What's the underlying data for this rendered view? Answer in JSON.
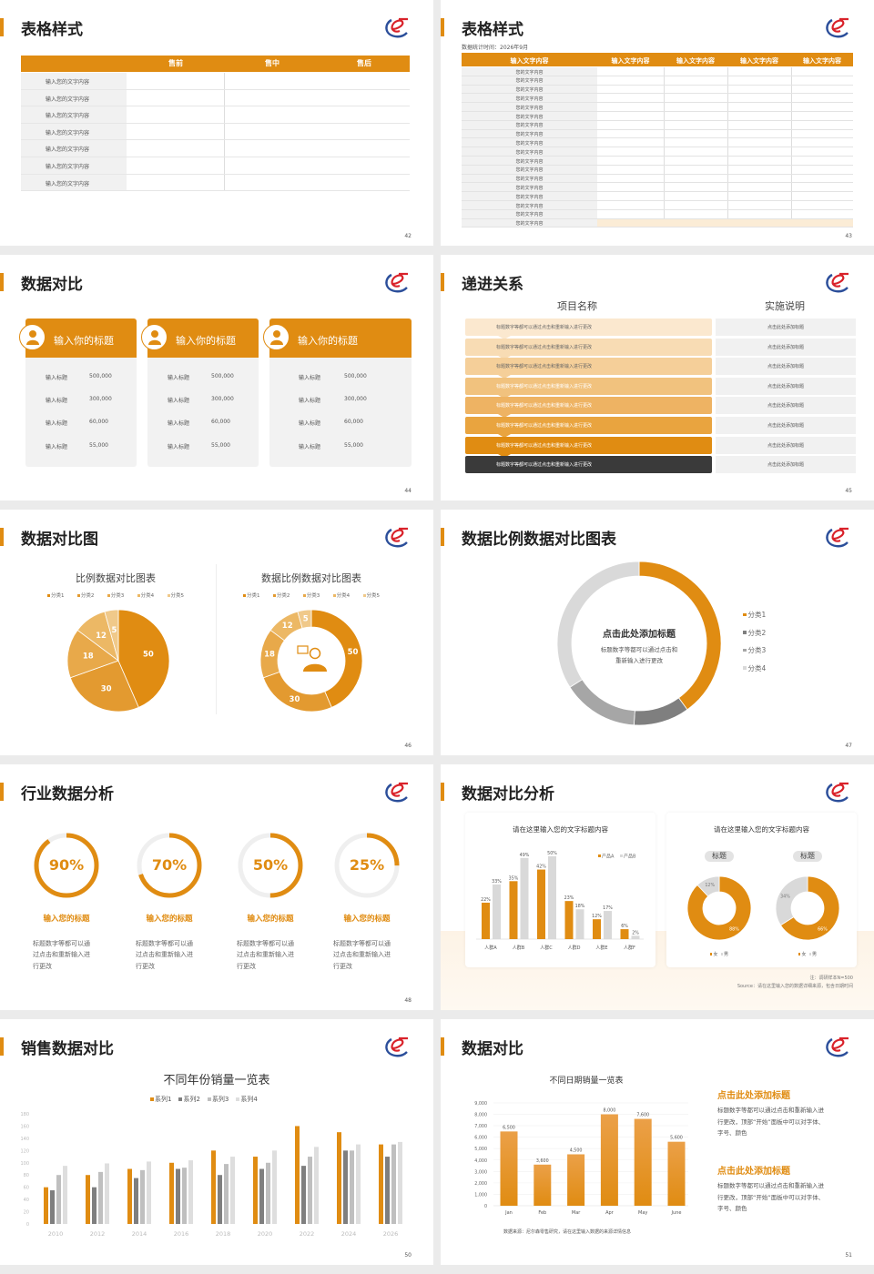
{
  "colors": {
    "accent": "#e08c12",
    "dark": "#3a3a3a",
    "gray": "#888888",
    "lightgray": "#d9d9d9",
    "logo_blue": "#2b4e9a",
    "logo_red": "#d9222a"
  },
  "logo_icon": "brand-e-swirl-logo",
  "s42": {
    "title": "表格样式",
    "page": "42",
    "headers": [
      "售前",
      "售中",
      "售后"
    ],
    "rows": [
      "输入您的文字内容",
      "输入您的文字内容",
      "输入您的文字内容",
      "输入您的文字内容",
      "输入您的文字内容",
      "输入您的文字内容",
      "输入您的文字内容"
    ]
  },
  "s43": {
    "title": "表格样式",
    "subtitle": "数据统计时间：2026年9月",
    "page": "43",
    "headers": [
      "输入文字内容",
      "输入文字内容",
      "输入文字内容",
      "输入文字内容",
      "输入文字内容"
    ],
    "rows": [
      "您的文字内容",
      "您的文字内容",
      "您的文字内容",
      "您的文字内容",
      "您的文字内容",
      "您的文字内容",
      "您的文字内容",
      "您的文字内容",
      "您的文字内容",
      "您的文字内容",
      "您的文字内容",
      "您的文字内容",
      "您的文字内容",
      "您的文字内容",
      "您的文字内容",
      "您的文字内容",
      "您的文字内容",
      "您的文字内容"
    ]
  },
  "s44": {
    "title": "数据对比",
    "page": "44",
    "cards": [
      {
        "title": "输入你的标题",
        "icon": "phone-user-add-icon",
        "items": [
          {
            "label": "输入标题",
            "value": "500,000"
          },
          {
            "label": "输入标题",
            "value": "300,000"
          },
          {
            "label": "输入标题",
            "value": "60,000"
          },
          {
            "label": "输入标题",
            "value": "55,000"
          }
        ]
      },
      {
        "title": "输入你的标题",
        "icon": "user-add-icon",
        "items": [
          {
            "label": "输入标题",
            "value": "500,000"
          },
          {
            "label": "输入标题",
            "value": "300,000"
          },
          {
            "label": "输入标题",
            "value": "60,000"
          },
          {
            "label": "输入标题",
            "value": "55,000"
          }
        ]
      },
      {
        "title": "输入你的标题",
        "icon": "user-group-icon",
        "items": [
          {
            "label": "输入标题",
            "value": "500,000"
          },
          {
            "label": "输入标题",
            "value": "300,000"
          },
          {
            "label": "输入标题",
            "value": "60,000"
          },
          {
            "label": "输入标题",
            "value": "55,000"
          }
        ]
      }
    ]
  },
  "s45": {
    "title": "递进关系",
    "page": "45",
    "col1": "项目名称",
    "col2": "实施说明",
    "rows": [
      {
        "text": "标题数字等都可以通过点击和重新输入进行更改",
        "note": "点击此处添加标题"
      },
      {
        "text": "标题数字等都可以通过点击和重新输入进行更改",
        "note": "点击此处添加标题"
      },
      {
        "text": "标题数字等都可以通过点击和重新输入进行更改",
        "note": "点击此处添加标题"
      },
      {
        "text": "标题数字等都可以通过点击和重新输入进行更改",
        "note": "点击此处添加标题"
      },
      {
        "text": "标题数字等都可以通过点击和重新输入进行更改",
        "note": "点击此处添加标题"
      },
      {
        "text": "标题数字等都可以通过点击和重新输入进行更改",
        "note": "点击此处添加标题"
      },
      {
        "text": "标题数字等都可以通过点击和重新输入进行更改",
        "note": "点击此处添加标题"
      },
      {
        "text": "标题数字等都可以通过点击和重新输入进行更改",
        "note": "点击此处添加标题"
      }
    ],
    "row_colors": [
      "#fbe8cf",
      "#f8dcb4",
      "#f5cf99",
      "#f1c27e",
      "#eeb363",
      "#e9a43f",
      "#e08c12",
      "#3a3a3a"
    ]
  },
  "s46": {
    "title": "数据对比图",
    "page": "46",
    "center_icon": "customer-service-person-icon"
  },
  "s47": {
    "title": "数据比例数据对比图表",
    "page": "47",
    "center_title": "点击此处添加标题",
    "center_text": [
      "标题数字等都可以通过点击和",
      "重新输入进行更改"
    ]
  },
  "s48": {
    "title": "行业数据分析",
    "page": "48",
    "items": [
      {
        "percent": 90,
        "label": "90%",
        "title": "输入您的标题",
        "text": [
          "标题数字等都可以通",
          "过点击和重新输入进",
          "行更改"
        ]
      },
      {
        "percent": 70,
        "label": "70%",
        "title": "输入您的标题",
        "text": [
          "标题数字等都可以通",
          "过点击和重新输入进",
          "行更改"
        ]
      },
      {
        "percent": 50,
        "label": "50%",
        "title": "输入您的标题",
        "text": [
          "标题数字等都可以通",
          "过点击和重新输入进",
          "行更改"
        ]
      },
      {
        "percent": 25,
        "label": "25%",
        "title": "输入您的标题",
        "text": [
          "标题数字等都可以通",
          "过点击和重新输入进",
          "行更改"
        ]
      }
    ]
  },
  "s49": {
    "title": "数据对比分析",
    "page": "49",
    "card1_title": "请在这里输入您的文字标题内容",
    "card2_title": "请在这里输入您的文字标题内容",
    "note": "注：调研样本N=500",
    "source": "Source：请在这里输入您的数据详细来源，包含日期时间"
  },
  "s50": {
    "title": "销售数据对比",
    "page": "50"
  },
  "s51": {
    "title": "数据对比",
    "page": "51",
    "source": "数据来源：尼尔森零售研究，请在这里输入数据的来源详情信息",
    "blocks": [
      {
        "title": "点击此处添加标题",
        "text": [
          "标题数字等都可以通过点击和重新输入进",
          "行更改，顶部“开始”面板中可以对字体、",
          "字号、颜色"
        ]
      },
      {
        "title": "点击此处添加标题",
        "text": [
          "标题数字等都可以通过点击和重新输入进",
          "行更改，顶部“开始”面板中可以对字体、",
          "字号、颜色"
        ]
      }
    ]
  },
  "chart_data": [
    {
      "id": "pie46",
      "type": "pie",
      "title": "比例数据对比图表",
      "categories": [
        "分类1",
        "分类2",
        "分类3",
        "分类4",
        "分类5"
      ],
      "values": [
        50,
        30,
        18,
        12,
        5
      ],
      "legend": "top",
      "colors": [
        "#e08c12",
        "#e39a30",
        "#e8a94a",
        "#ecb865",
        "#f0c98a"
      ]
    },
    {
      "id": "donut46",
      "type": "pie",
      "variant": "donut",
      "title": "数据比例数据对比图表",
      "categories": [
        "分类1",
        "分类2",
        "分类3",
        "分类4",
        "分类5"
      ],
      "values": [
        50,
        30,
        18,
        12,
        5
      ],
      "legend": "top",
      "colors": [
        "#e08c12",
        "#e39a30",
        "#e8a94a",
        "#ecb865",
        "#f0c98a"
      ]
    },
    {
      "id": "donut47",
      "type": "pie",
      "variant": "donut",
      "categories": [
        "分类1",
        "分类2",
        "分类3",
        "分类4"
      ],
      "values": [
        40,
        11,
        15,
        34
      ],
      "legend": "right",
      "colors": [
        "#e08c12",
        "#7f7f7f",
        "#a6a6a6",
        "#d9d9d9"
      ]
    },
    {
      "id": "bar49",
      "type": "bar",
      "categories": [
        "人群A",
        "人群B",
        "人群C",
        "人群D",
        "人群E",
        "人群F"
      ],
      "series": [
        {
          "name": "产品A",
          "values": [
            22,
            35,
            42,
            23,
            12,
            6
          ]
        },
        {
          "name": "产品B",
          "values": [
            33,
            49,
            50,
            18,
            17,
            2
          ]
        }
      ],
      "value_suffix": "%",
      "legend": "top-right",
      "colors": [
        "#e08c12",
        "#d9d9d9"
      ]
    },
    {
      "id": "donut49a",
      "type": "pie",
      "variant": "donut",
      "title": "标题",
      "categories": [
        "女",
        "男"
      ],
      "values": [
        88,
        12
      ],
      "value_suffix": "%",
      "legend": "bottom",
      "colors": [
        "#e08c12",
        "#d9d9d9"
      ]
    },
    {
      "id": "donut49b",
      "type": "pie",
      "variant": "donut",
      "title": "标题",
      "categories": [
        "女",
        "男"
      ],
      "values": [
        66,
        34
      ],
      "value_suffix": "%",
      "legend": "bottom",
      "colors": [
        "#e08c12",
        "#d9d9d9"
      ]
    },
    {
      "id": "bar50",
      "type": "bar",
      "title": "不同年份销量一览表",
      "categories": [
        "2010",
        "2012",
        "2014",
        "2016",
        "2018",
        "2020",
        "2022",
        "2024",
        "2026"
      ],
      "series": [
        {
          "name": "系列1",
          "values": [
            60,
            80,
            90,
            100,
            120,
            110,
            160,
            150,
            130
          ]
        },
        {
          "name": "系列2",
          "values": [
            55,
            60,
            75,
            90,
            80,
            90,
            95,
            120,
            110
          ]
        },
        {
          "name": "系列3",
          "values": [
            80,
            85,
            88,
            92,
            98,
            100,
            110,
            120,
            130
          ]
        },
        {
          "name": "系列4",
          "values": [
            95,
            99,
            102,
            104,
            110,
            120,
            126,
            130,
            134
          ]
        }
      ],
      "ylim": [
        0,
        180
      ],
      "yticks": [
        "0",
        "20",
        "40",
        "60",
        "80",
        "100",
        "120",
        "140",
        "160",
        "180"
      ],
      "grid": false,
      "legend": "top",
      "colors": [
        "#e08c12",
        "#7f7f7f",
        "#bfbfbf",
        "#dedede"
      ]
    },
    {
      "id": "bar51",
      "type": "bar",
      "title": "不同日期销量一览表",
      "categories": [
        "Jan",
        "Feb",
        "Mar",
        "Apr",
        "May",
        "June"
      ],
      "values": [
        6500,
        3600,
        4500,
        8000,
        7600,
        5600
      ],
      "labels": [
        "6,500",
        "3,600",
        "4,500",
        "8,000",
        "7,600",
        "5,600"
      ],
      "ylim": [
        0,
        9000
      ],
      "yticks": [
        "0",
        "1,000",
        "2,000",
        "3,000",
        "4,000",
        "5,000",
        "6,000",
        "7,000",
        "8,000",
        "9,000"
      ],
      "grid": true,
      "colors": [
        "#e8952a"
      ]
    }
  ]
}
